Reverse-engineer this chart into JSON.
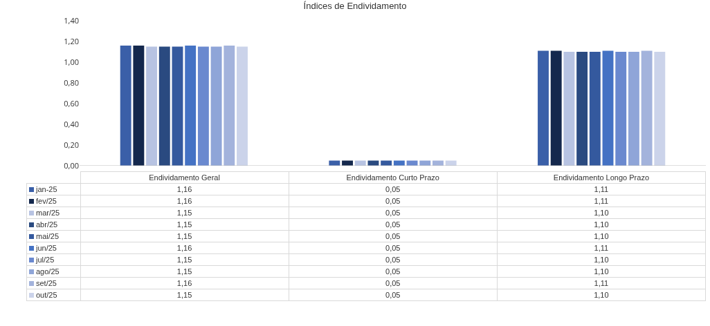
{
  "chart_data": {
    "type": "bar",
    "title": "Índices de Endividamento",
    "categories": [
      "Endividamento Geral",
      "Endividamento Curto Prazo",
      "Endividamento Longo Prazo"
    ],
    "series": [
      {
        "name": "jan-25",
        "color": "#3a5fa8",
        "values": [
          1.16,
          0.05,
          1.11
        ],
        "value_labels": [
          "1,16",
          "0,05",
          "1,11"
        ]
      },
      {
        "name": "fev/25",
        "color": "#14284d",
        "values": [
          1.16,
          0.05,
          1.11
        ],
        "value_labels": [
          "1,16",
          "0,05",
          "1,11"
        ]
      },
      {
        "name": "mar/25",
        "color": "#b7c3e2",
        "values": [
          1.15,
          0.05,
          1.1
        ],
        "value_labels": [
          "1,15",
          "0,05",
          "1,10"
        ]
      },
      {
        "name": "abr/25",
        "color": "#2a4a80",
        "values": [
          1.15,
          0.05,
          1.1
        ],
        "value_labels": [
          "1,15",
          "0,05",
          "1,10"
        ]
      },
      {
        "name": "mai/25",
        "color": "#34599e",
        "values": [
          1.15,
          0.05,
          1.1
        ],
        "value_labels": [
          "1,15",
          "0,05",
          "1,10"
        ]
      },
      {
        "name": "jun/25",
        "color": "#4472c4",
        "values": [
          1.16,
          0.05,
          1.11
        ],
        "value_labels": [
          "1,16",
          "0,05",
          "1,11"
        ]
      },
      {
        "name": "jul/25",
        "color": "#6a89cf",
        "values": [
          1.15,
          0.05,
          1.1
        ],
        "value_labels": [
          "1,15",
          "0,05",
          "1,10"
        ]
      },
      {
        "name": "ago/25",
        "color": "#8fa5d8",
        "values": [
          1.15,
          0.05,
          1.1
        ],
        "value_labels": [
          "1,15",
          "0,05",
          "1,10"
        ]
      },
      {
        "name": "set/25",
        "color": "#a3b3dc",
        "values": [
          1.16,
          0.05,
          1.11
        ],
        "value_labels": [
          "1,16",
          "0,05",
          "1,11"
        ]
      },
      {
        "name": "out/25",
        "color": "#cbd3ea",
        "values": [
          1.15,
          0.05,
          1.1
        ],
        "value_labels": [
          "1,15",
          "0,05",
          "1,10"
        ]
      }
    ],
    "ylim": [
      0,
      1.4
    ],
    "yticks": [
      {
        "value": 0,
        "label": "0,00"
      },
      {
        "value": 0.2,
        "label": "0,20"
      },
      {
        "value": 0.4,
        "label": "0,40"
      },
      {
        "value": 0.6,
        "label": "0,60"
      },
      {
        "value": 0.8,
        "label": "0,80"
      },
      {
        "value": 1.0,
        "label": "1,00"
      },
      {
        "value": 1.2,
        "label": "1,20"
      },
      {
        "value": 1.4,
        "label": "1,40"
      }
    ],
    "legend": "bottom left"
  }
}
